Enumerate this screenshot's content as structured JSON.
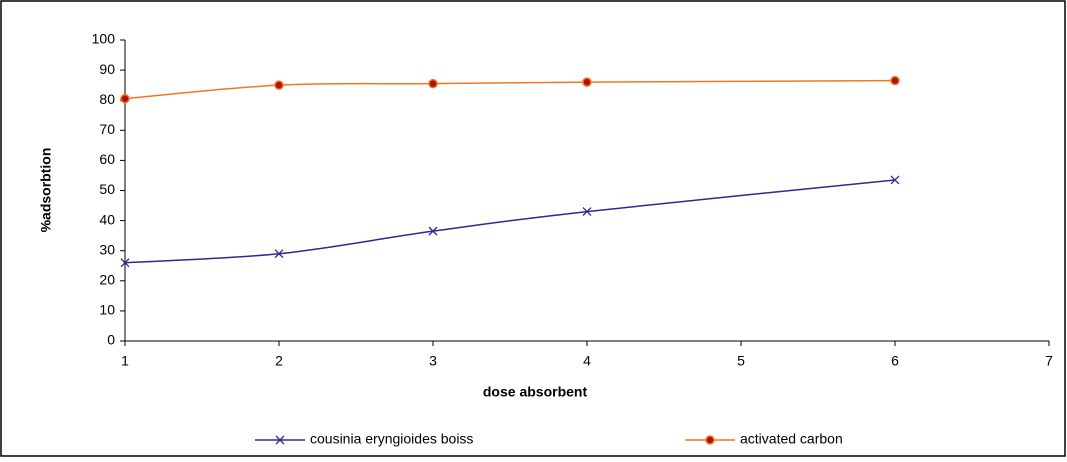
{
  "chart_data": {
    "type": "line",
    "x_label": "dose absorbent",
    "y_label": "%adsorbtion",
    "x": [
      1,
      2,
      3,
      4,
      6
    ],
    "series": [
      {
        "name": "cousinia eryngioides boiss",
        "color": "#2b2b8f",
        "marker": "x",
        "values": [
          26,
          29,
          36.5,
          43,
          53.5
        ]
      },
      {
        "name": "activated carbon",
        "color": "#f07820",
        "marker": "circle",
        "values": [
          80.5,
          85,
          85.5,
          86,
          86.5
        ]
      }
    ],
    "xlim": [
      1,
      7
    ],
    "xticks": [
      1,
      2,
      3,
      4,
      5,
      6,
      7
    ],
    "ylim": [
      0,
      100
    ],
    "yticks": [
      0,
      10,
      20,
      30,
      40,
      50,
      60,
      70,
      80,
      90,
      100
    ],
    "smooth": true,
    "grid": false,
    "legend": "bottom"
  }
}
